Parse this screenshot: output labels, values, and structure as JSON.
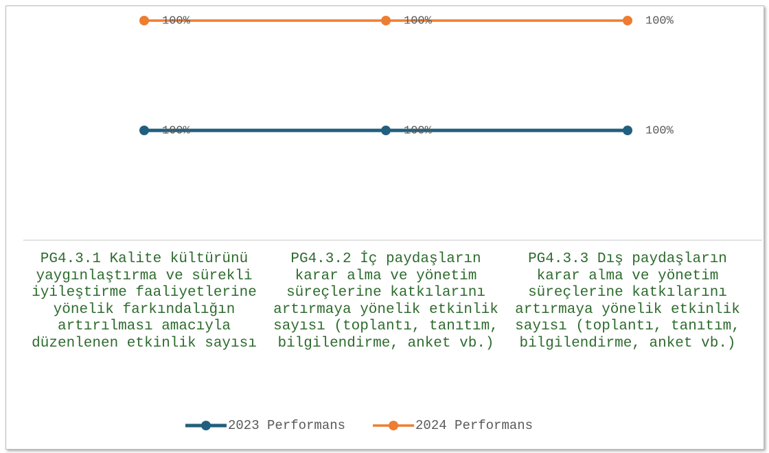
{
  "chart_data": {
    "type": "line",
    "stacked": true,
    "categories": [
      "PG4.3.1 Kalite kültürünü yaygınlaştırma ve sürekli iyileştirme faaliyetlerine yönelik farkındalığın artırılması amacıyla düzenlenen etkinlik sayısı",
      "PG4.3.2 İç paydaşların karar alma ve yönetim süreçlerine katkılarını artırmaya yönelik etkinlik sayısı (toplantı, tanıtım, bilgilendirme, anket vb.)",
      "PG4.3.3 Dış paydaşların karar alma ve yönetim süreçlerine katkılarını artırmaya yönelik etkinlik sayısı (toplantı, tanıtım, bilgilendirme, anket vb.)"
    ],
    "series": [
      {
        "name": "2023 Performans",
        "color": "#215f7e",
        "values": [
          100,
          100,
          100
        ],
        "value_labels": [
          "100%",
          "100%",
          "100%"
        ]
      },
      {
        "name": "2024 Performans",
        "color": "#ed7d31",
        "values": [
          100,
          100,
          100
        ],
        "value_labels": [
          "100%",
          "100%",
          "100%"
        ]
      }
    ],
    "ylim": [
      0,
      200
    ],
    "legend": "bottom"
  }
}
